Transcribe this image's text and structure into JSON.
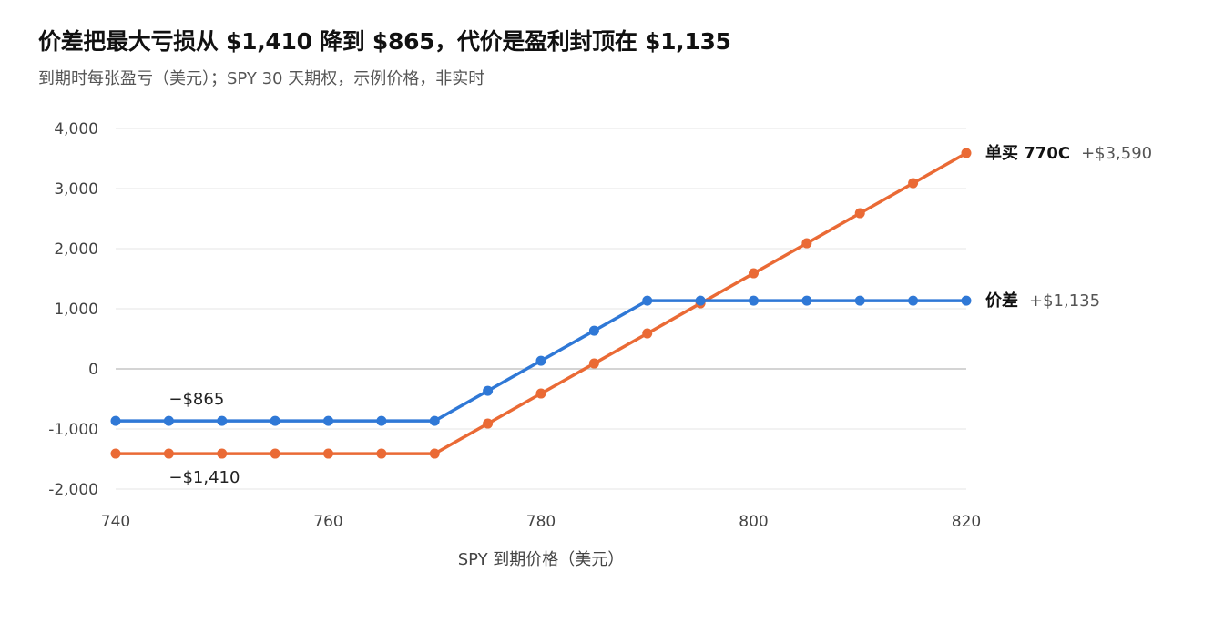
{
  "chart_data": {
    "type": "line",
    "title": "价差把最大亏损从 $1,410 降到 $865，代价是盈利封顶在 $1,135",
    "subtitle": "到期时每张盈亏（美元）；SPY 30 天期权，示例价格，非实时",
    "xlabel": "SPY 到期价格（美元）",
    "ylabel": "",
    "xlim": [
      740,
      820
    ],
    "ylim": [
      -2000,
      4000
    ],
    "x_ticks": [
      740,
      760,
      780,
      800,
      820
    ],
    "y_ticks": [
      {
        "value": 4000,
        "label": "4,000"
      },
      {
        "value": 3000,
        "label": "3,000"
      },
      {
        "value": 2000,
        "label": "2,000"
      },
      {
        "value": 1000,
        "label": "1,000"
      },
      {
        "value": 0,
        "label": "0"
      },
      {
        "value": -1000,
        "label": "-1,000"
      },
      {
        "value": -2000,
        "label": "-2,000"
      }
    ],
    "grid": true,
    "x": [
      740,
      745,
      750,
      755,
      760,
      765,
      770,
      775,
      780,
      785,
      790,
      795,
      800,
      805,
      810,
      815,
      820
    ],
    "series": [
      {
        "name": "单买 770C",
        "end_label": "+$3,590",
        "color": "#EA6A35",
        "values": [
          -1410,
          -1410,
          -1410,
          -1410,
          -1410,
          -1410,
          -1410,
          -910,
          -410,
          90,
          590,
          1090,
          1590,
          2090,
          2590,
          3090,
          3590
        ]
      },
      {
        "name": "价差",
        "end_label": "+$1,135",
        "color": "#2F78D6",
        "values": [
          -865,
          -865,
          -865,
          -865,
          -865,
          -865,
          -865,
          -365,
          135,
          635,
          1135,
          1135,
          1135,
          1135,
          1135,
          1135,
          1135
        ]
      }
    ],
    "annotations": [
      {
        "text": "−$865",
        "x": 745,
        "y": -865,
        "series": "价差",
        "position": "above"
      },
      {
        "text": "−$1,410",
        "x": 745,
        "y": -1410,
        "series": "单买 770C",
        "position": "below"
      }
    ]
  }
}
